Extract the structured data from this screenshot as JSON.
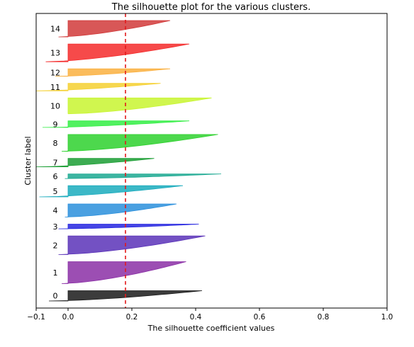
{
  "chart_data": {
    "type": "area",
    "title": "The silhouette plot for the various clusters.",
    "xlabel": "The silhouette coefficient values",
    "ylabel": "Cluster label",
    "xlim": [
      -0.1,
      1.0
    ],
    "x_ticks": [
      "−0.1",
      "0.0",
      "0.2",
      "0.4",
      "0.6",
      "0.8",
      "1.0"
    ],
    "x_tick_values": [
      -0.1,
      0.0,
      0.2,
      0.4,
      0.6,
      0.8,
      1.0
    ],
    "grid": false,
    "reference_line": {
      "x": 0.18,
      "color": "#e31a1c",
      "style": "dashed"
    },
    "clusters": [
      {
        "label": "0",
        "count": 22,
        "max": 0.42,
        "min": -0.06,
        "color": "#1a1a1a"
      },
      {
        "label": "1",
        "count": 47,
        "max": 0.37,
        "min": -0.02,
        "color": "#8b2fa6"
      },
      {
        "label": "2",
        "count": 40,
        "max": 0.43,
        "min": -0.03,
        "color": "#5a33b8"
      },
      {
        "label": "3",
        "count": 10,
        "max": 0.41,
        "min": -0.03,
        "color": "#2424e0"
      },
      {
        "label": "4",
        "count": 28,
        "max": 0.34,
        "min": -0.01,
        "color": "#2a8fdc"
      },
      {
        "label": "5",
        "count": 24,
        "max": 0.36,
        "min": -0.09,
        "color": "#1aabbd"
      },
      {
        "label": "6",
        "count": 10,
        "max": 0.48,
        "min": -0.01,
        "color": "#1aa890"
      },
      {
        "label": "7",
        "count": 18,
        "max": 0.27,
        "min": -0.1,
        "color": "#1b9e34"
      },
      {
        "label": "8",
        "count": 36,
        "max": 0.47,
        "min": -0.02,
        "color": "#2ed12e"
      },
      {
        "label": "9",
        "count": 14,
        "max": 0.38,
        "min": -0.08,
        "color": "#33ee44"
      },
      {
        "label": "10",
        "count": 34,
        "max": 0.45,
        "min": 0.0,
        "color": "#c8f530"
      },
      {
        "label": "11",
        "count": 16,
        "max": 0.29,
        "min": -0.1,
        "color": "#f5d030"
      },
      {
        "label": "12",
        "count": 16,
        "max": 0.32,
        "min": -0.04,
        "color": "#fab040"
      },
      {
        "label": "13",
        "count": 38,
        "max": 0.38,
        "min": -0.07,
        "color": "#f42a2a"
      },
      {
        "label": "14",
        "count": 35,
        "max": 0.32,
        "min": -0.03,
        "color": "#d13a3a"
      }
    ]
  }
}
